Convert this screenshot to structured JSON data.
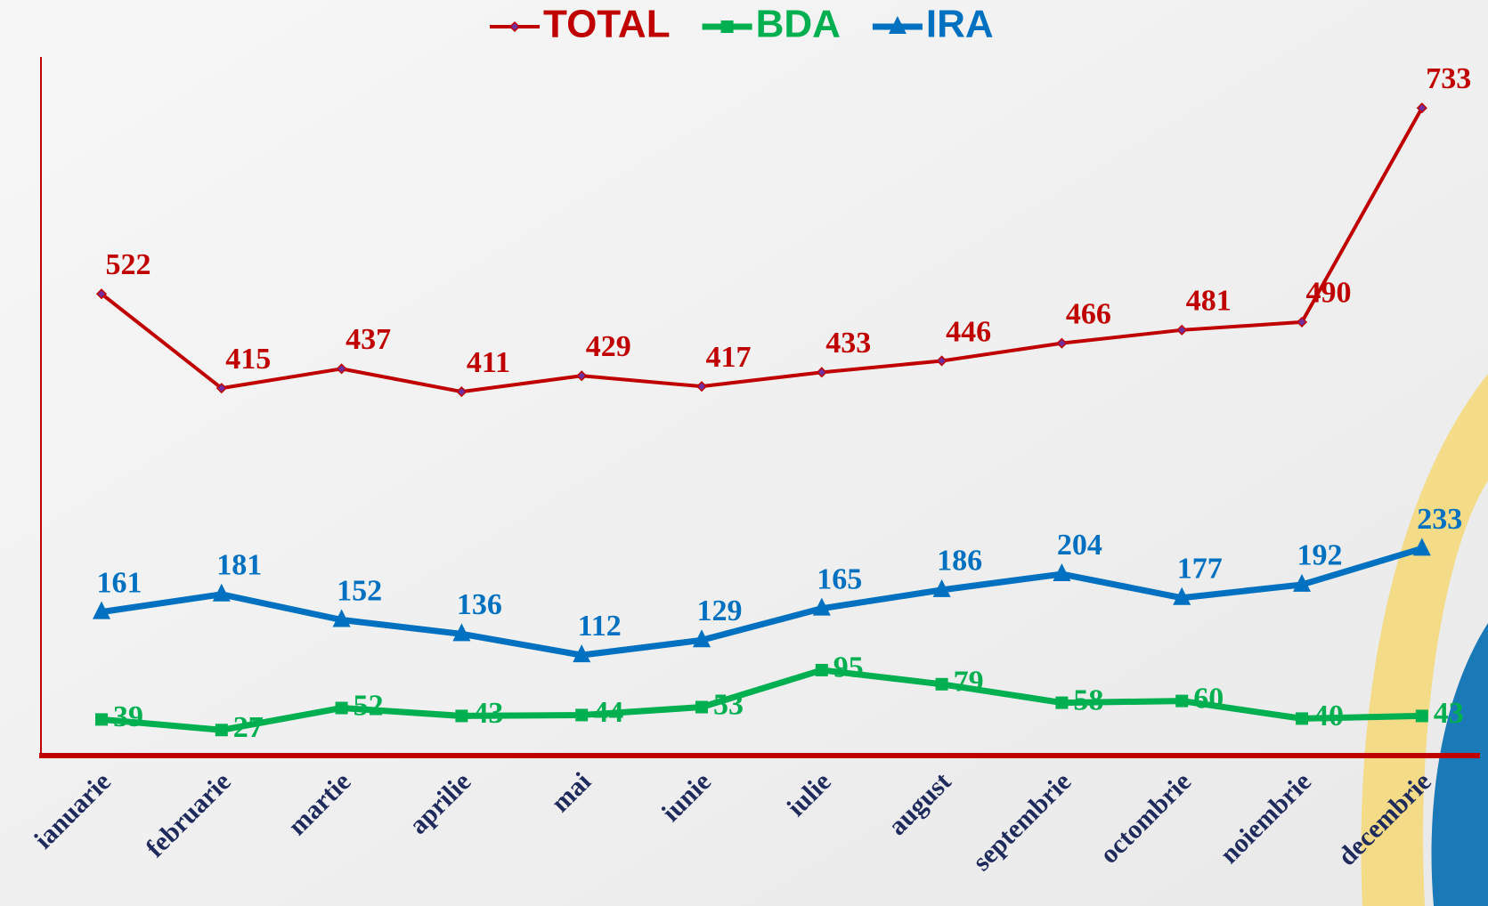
{
  "chart_data": {
    "type": "line",
    "categories": [
      "ianuarie",
      "februarie",
      "martie",
      "aprilie",
      "mai",
      "iunie",
      "iulie",
      "august",
      "septembrie",
      "octombrie",
      "noiembrie",
      "decembrie"
    ],
    "series": [
      {
        "name": "TOTAL",
        "color": "#c00000",
        "values": [
          522,
          415,
          437,
          411,
          429,
          417,
          433,
          446,
          466,
          481,
          490,
          733
        ]
      },
      {
        "name": "BDA",
        "color": "#00b050",
        "values": [
          39,
          27,
          52,
          43,
          44,
          53,
          95,
          79,
          58,
          60,
          40,
          43
        ]
      },
      {
        "name": "IRA",
        "color": "#0070c0",
        "values": [
          161,
          181,
          152,
          136,
          112,
          129,
          165,
          186,
          204,
          177,
          192,
          233
        ]
      }
    ],
    "ylim": [
      0,
      800
    ]
  }
}
